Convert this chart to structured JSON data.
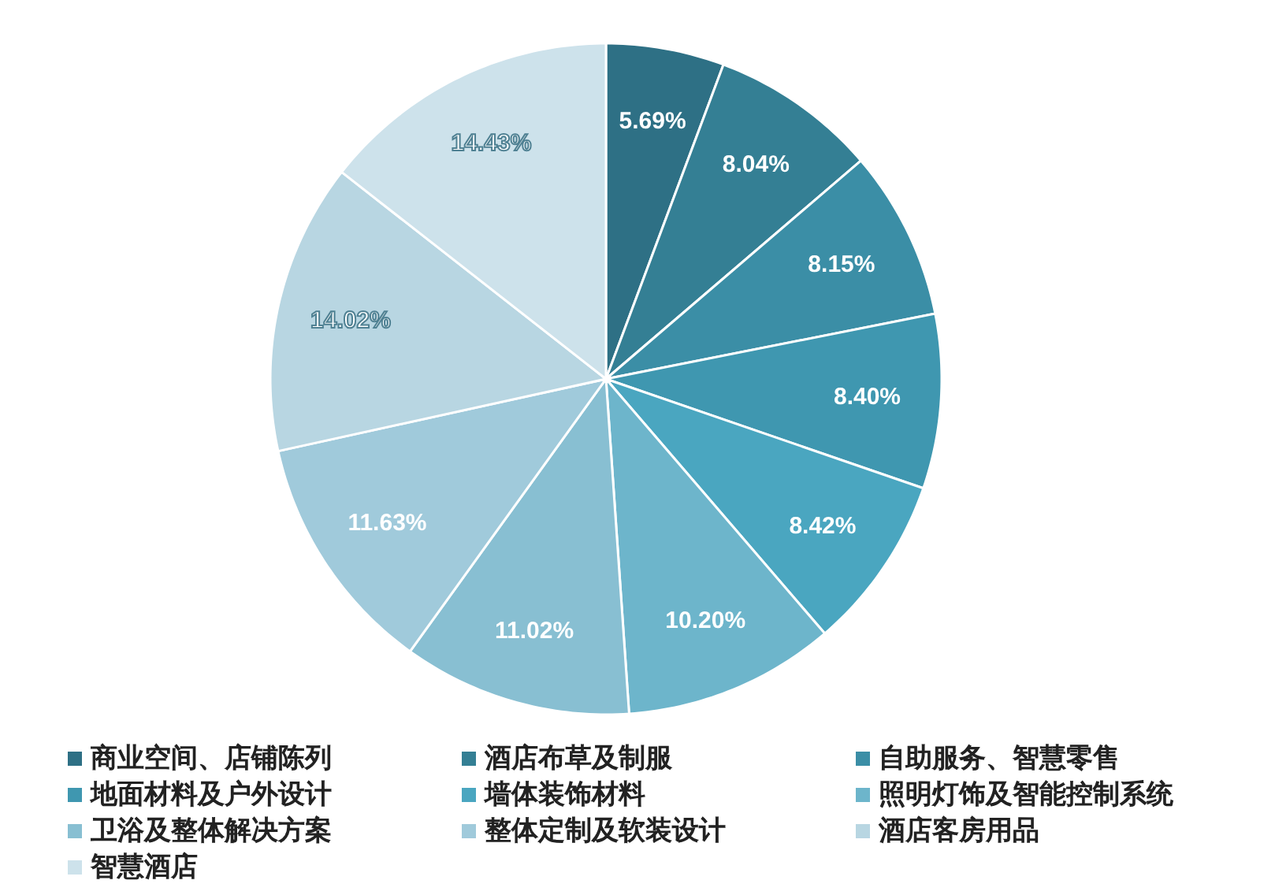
{
  "chart_data": {
    "type": "pie",
    "categories": [
      "商业空间、店铺陈列",
      "酒店布草及制服",
      "自助服务、智慧零售",
      "地面材料及户外设计",
      "墙体装饰材料",
      "照明灯饰及智能控制系统",
      "卫浴及整体解决方案",
      "整体定制及软装设计",
      "酒店客房用品",
      "智慧酒店"
    ],
    "values": [
      5.69,
      8.04,
      8.15,
      8.4,
      8.42,
      10.2,
      11.02,
      11.63,
      14.02,
      14.43
    ],
    "colors": [
      "#2e7085",
      "#347f94",
      "#3b8ea6",
      "#3f97b0",
      "#4aa6c0",
      "#6db5cb",
      "#88bfd2",
      "#a0cadb",
      "#b8d6e2",
      "#cde2eb"
    ],
    "value_labels": [
      "5.69%",
      "8.04%",
      "8.15%",
      "8.40%",
      "8.42%",
      "10.20%",
      "11.02%",
      "11.63%",
      "14.02%",
      "14.43%"
    ],
    "legend": "bottom"
  }
}
